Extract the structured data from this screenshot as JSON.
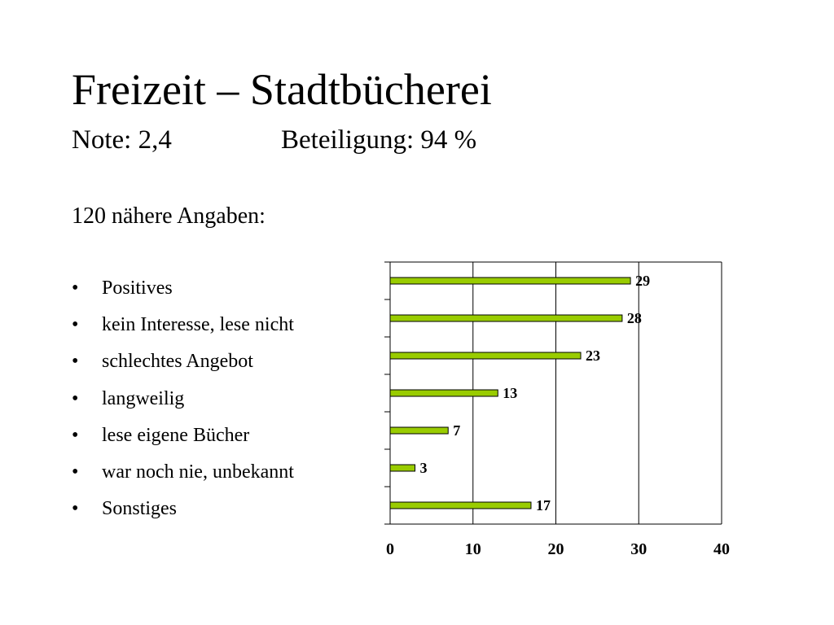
{
  "slide": {
    "title": "Freizeit – Stadtbücherei",
    "note": "Note: 2,4",
    "participation": "Beteiligung: 94 %",
    "details": "120 nähere Angaben:"
  },
  "bullets": [
    "Positives",
    "kein Interesse, lese nicht",
    "schlechtes Angebot",
    "langweilig",
    "lese eigene Bücher",
    "war noch nie, unbekannt",
    "Sonstiges"
  ],
  "bullet_symbol": "•",
  "chart_data": {
    "type": "bar",
    "orientation": "horizontal",
    "categories": [
      "Positives",
      "kein Interesse, lese nicht",
      "schlechtes Angebot",
      "langweilig",
      "lese eigene Bücher",
      "war noch nie, unbekannt",
      "Sonstiges"
    ],
    "values": [
      29,
      28,
      23,
      13,
      7,
      3,
      17
    ],
    "data_labels": [
      "29",
      "28",
      "23",
      "13",
      "7",
      "3",
      "17"
    ],
    "xlim": [
      0,
      40
    ],
    "x_ticks": [
      0,
      10,
      20,
      30,
      40
    ],
    "x_tick_labels": [
      "0",
      "10",
      "20",
      "30",
      "40"
    ],
    "grid": "vertical",
    "legend": "none",
    "bar_color": "#99cc00",
    "bar_edge_color": "#000000"
  }
}
